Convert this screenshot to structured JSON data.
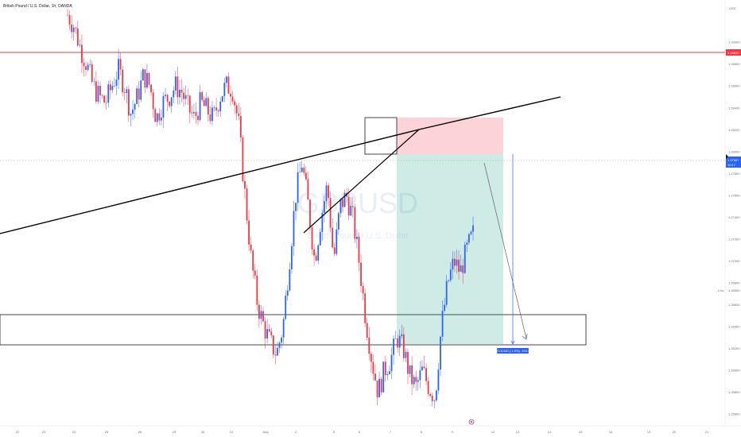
{
  "header": {
    "symbol_title": "British Pound / U.S. Dollar, 1h, OANDA",
    "currency": "USD"
  },
  "watermark": {
    "ticker": "GBPUSD",
    "name": "British Pound / U.S. Dollar"
  },
  "colors": {
    "bull": "#2962ff",
    "bear": "#f23645",
    "resistance": "#f23645",
    "stop_zone": "rgba(242,54,69,0.22)",
    "target_zone": "rgba(8,153,129,0.20)",
    "price_badge": "#2962ff",
    "trendline": "#000000"
  },
  "chart_data": {
    "type": "candlestick",
    "ylim": [
      1.255,
      1.2935
    ],
    "y_ticks": [
      "1.29000",
      "1.28800",
      "1.28600",
      "1.28400",
      "1.28200",
      "1.28000",
      "1.27800",
      "1.27600",
      "1.27400",
      "1.27200",
      "1.27000",
      "1.26800",
      "1.26600",
      "1.26400",
      "1.26200",
      "1.26000",
      "1.25800",
      "1.25600"
    ],
    "x_ticks": [
      "22",
      "23",
      "24",
      "25",
      "26",
      "29",
      "30",
      "31",
      "Aug",
      "2",
      "5",
      "6",
      "7",
      "8",
      "9",
      "12",
      "13",
      "14",
      "15",
      "16",
      "19",
      "20",
      "21"
    ],
    "prices": [
      1.2925,
      1.2915,
      1.2895,
      1.288,
      1.286,
      1.285,
      1.2845,
      1.286,
      1.2875,
      1.286,
      1.2835,
      1.285,
      1.287,
      1.286,
      1.283,
      1.2845,
      1.285,
      1.286,
      1.2855,
      1.284,
      1.283,
      1.2845,
      1.2838,
      1.283,
      1.285,
      1.286,
      1.2858,
      1.2825,
      1.276,
      1.27,
      1.266,
      1.264,
      1.2625,
      1.2615,
      1.264,
      1.27,
      1.276,
      1.279,
      1.275,
      1.27,
      1.274,
      1.277,
      1.27,
      1.275,
      1.276,
      1.274,
      1.27,
      1.265,
      1.261,
      1.258,
      1.26,
      1.261,
      1.263,
      1.262,
      1.2595,
      1.2585,
      1.26,
      1.2585,
      1.2575,
      1.264,
      1.268,
      1.27,
      1.269,
      1.271,
      1.2725
    ],
    "resistance_level": "1.28530",
    "current_price": "1.27687",
    "countdown": "10:17",
    "low_marker": "1.26650",
    "stop_zone": {
      "top": 1.2799,
      "bottom": 1.277
    },
    "target_zone": {
      "top": 1.277,
      "bottom": 1.2594
    },
    "support_box": {
      "top": 1.26185,
      "bottom": 1.2595
    },
    "projection_label": "-0.01940 (-1.5%) -194.0",
    "grid": false,
    "legend": "none"
  }
}
